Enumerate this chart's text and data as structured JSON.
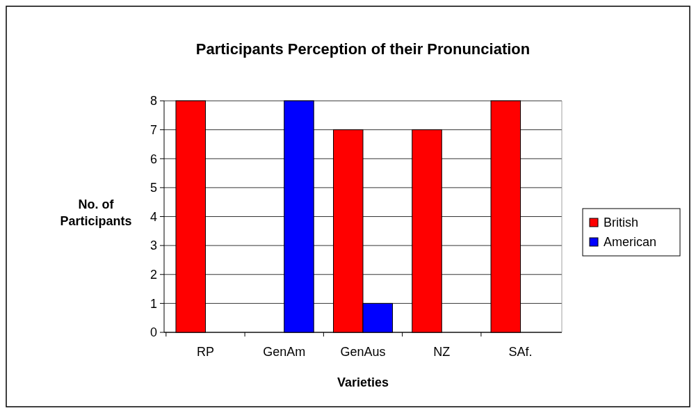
{
  "chart_data": {
    "type": "bar",
    "title": "Participants Perception of their Pronunciation",
    "xlabel": "Varieties",
    "ylabel": "No. of Participants",
    "categories": [
      "RP",
      "GenAm",
      "GenAus",
      "NZ",
      "SAf."
    ],
    "series": [
      {
        "name": "British",
        "color": "#ff0000",
        "values": [
          8,
          0,
          7,
          7,
          8
        ]
      },
      {
        "name": "American",
        "color": "#0000ff",
        "values": [
          0,
          8,
          1,
          0,
          0
        ]
      }
    ],
    "ylim": [
      0,
      8
    ],
    "yticks": [
      0,
      1,
      2,
      3,
      4,
      5,
      6,
      7,
      8
    ],
    "grid": "y",
    "legend": "right"
  }
}
